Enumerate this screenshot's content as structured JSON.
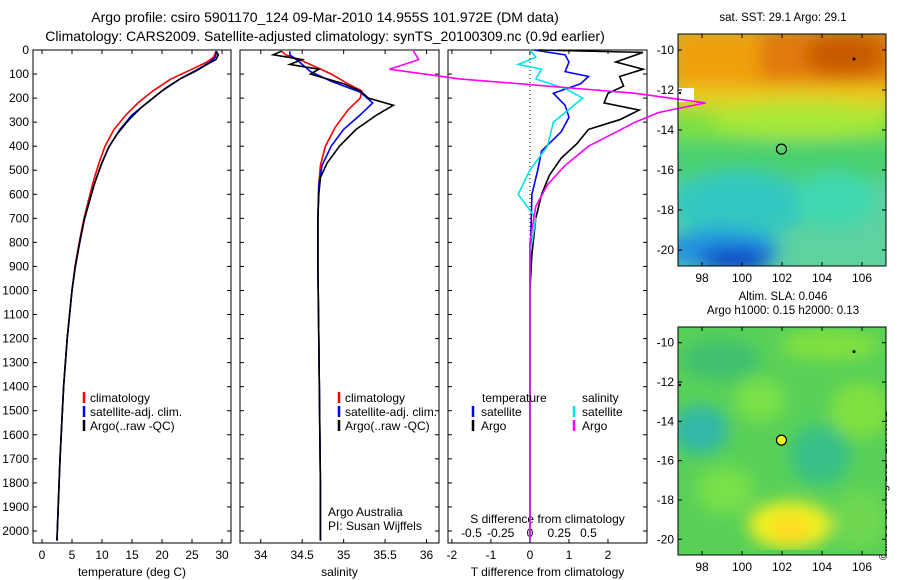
{
  "header": {
    "title_line1": "Argo profile: csiro 5901170_124 09-Mar-2010 14.955S 101.972E (DM data)",
    "title_line2": "Climatology: CARS2009. Satellite-adjusted climatology: synTS_20100309.nc (0.9d earlier)"
  },
  "stamp": "©IMOS 02-Aug-2017 18:45:51",
  "colors": {
    "climatology": "#ff0000",
    "satellite": "#0000ff",
    "argo": "#000000",
    "salinity_sat": "#00e5e5",
    "salinity_argo": "#ff00ff"
  },
  "chart_data": [
    {
      "type": "line",
      "id": "temperature",
      "xlabel": "temperature (deg C)",
      "ylabel": "",
      "xlim": [
        -1.5,
        31.5
      ],
      "ylim": [
        2050,
        0
      ],
      "xticks": [
        "0",
        "5",
        "10",
        "15",
        "20",
        "25",
        "30"
      ],
      "yticks": [
        "0",
        "100",
        "200",
        "300",
        "400",
        "500",
        "600",
        "700",
        "800",
        "900",
        "1000",
        "1100",
        "1200",
        "1300",
        "1400",
        "1500",
        "1600",
        "1700",
        "1800",
        "1900",
        "2000"
      ],
      "legend": {
        "placement": "lower-center",
        "entries": [
          "climatology",
          "satellite-adj. clim.",
          "Argo(..raw -QC)"
        ]
      },
      "series": [
        {
          "name": "climatology",
          "color": "#ff0000",
          "points": [
            [
              29.0,
              5
            ],
            [
              28.6,
              30
            ],
            [
              27.5,
              50
            ],
            [
              25.0,
              80
            ],
            [
              21.5,
              120
            ],
            [
              18.5,
              170
            ],
            [
              16.0,
              220
            ],
            [
              14.0,
              270
            ],
            [
              12.0,
              330
            ],
            [
              10.5,
              400
            ],
            [
              9.5,
              470
            ],
            [
              8.5,
              550
            ],
            [
              7.8,
              620
            ],
            [
              7.0,
              700
            ],
            [
              6.2,
              800
            ],
            [
              5.5,
              900
            ],
            [
              5.0,
              1000
            ],
            [
              4.6,
              1100
            ],
            [
              4.2,
              1200
            ],
            [
              3.9,
              1300
            ],
            [
              3.6,
              1400
            ],
            [
              3.4,
              1500
            ],
            [
              3.2,
              1600
            ],
            [
              3.0,
              1700
            ],
            [
              2.85,
              1800
            ],
            [
              2.7,
              1900
            ],
            [
              2.55,
              2000
            ],
            [
              2.5,
              2040
            ]
          ]
        },
        {
          "name": "satellite-adj. clim.",
          "color": "#0000ff",
          "points": [
            [
              29.1,
              5
            ],
            [
              28.9,
              30
            ],
            [
              28.0,
              50
            ],
            [
              26.0,
              80
            ],
            [
              23.0,
              120
            ],
            [
              20.0,
              170
            ],
            [
              17.5,
              220
            ],
            [
              15.0,
              270
            ],
            [
              13.0,
              330
            ],
            [
              11.2,
              400
            ],
            [
              10.0,
              470
            ],
            [
              8.8,
              550
            ],
            [
              8.0,
              620
            ],
            [
              7.1,
              700
            ],
            [
              6.3,
              800
            ],
            [
              5.55,
              900
            ],
            [
              5.0,
              1000
            ],
            [
              4.6,
              1100
            ],
            [
              4.2,
              1200
            ],
            [
              3.9,
              1300
            ],
            [
              3.6,
              1400
            ],
            [
              3.4,
              1500
            ],
            [
              3.2,
              1600
            ],
            [
              3.0,
              1700
            ],
            [
              2.85,
              1800
            ],
            [
              2.7,
              1900
            ],
            [
              2.55,
              2000
            ],
            [
              2.5,
              2040
            ]
          ]
        },
        {
          "name": "Argo(..raw -QC)",
          "color": "#000000",
          "points": [
            [
              29.0,
              5
            ],
            [
              29.4,
              20
            ],
            [
              29.0,
              40
            ],
            [
              27.5,
              60
            ],
            [
              25.5,
              90
            ],
            [
              23.0,
              120
            ],
            [
              20.5,
              160
            ],
            [
              18.5,
              200
            ],
            [
              16.5,
              240
            ],
            [
              14.5,
              290
            ],
            [
              12.5,
              350
            ],
            [
              11.0,
              410
            ],
            [
              9.8,
              480
            ],
            [
              8.7,
              560
            ],
            [
              7.9,
              630
            ],
            [
              7.0,
              710
            ],
            [
              6.2,
              810
            ],
            [
              5.5,
              910
            ],
            [
              5.0,
              1000
            ],
            [
              4.6,
              1100
            ],
            [
              4.2,
              1200
            ],
            [
              3.9,
              1300
            ],
            [
              3.6,
              1400
            ],
            [
              3.4,
              1500
            ],
            [
              3.2,
              1600
            ],
            [
              3.0,
              1700
            ],
            [
              2.85,
              1800
            ],
            [
              2.7,
              1900
            ],
            [
              2.55,
              2000
            ],
            [
              2.5,
              2040
            ]
          ]
        }
      ]
    },
    {
      "type": "line",
      "id": "salinity",
      "xlabel": "salinity",
      "xlim": [
        33.75,
        36.15
      ],
      "ylim": [
        2050,
        0
      ],
      "xticks": [
        "34",
        "34.5",
        "35",
        "35.5",
        "36"
      ],
      "legend": {
        "placement": "lower-center",
        "entries": [
          "climatology",
          "satellite-adj. clim.",
          "Argo(..raw -QC)"
        ]
      },
      "annotations": [
        "Argo Australia",
        "PI: Susan Wijffels"
      ],
      "series": [
        {
          "name": "climatology",
          "color": "#ff0000",
          "points": [
            [
              34.25,
              5
            ],
            [
              34.3,
              20
            ],
            [
              34.5,
              45
            ],
            [
              34.85,
              100
            ],
            [
              35.05,
              140
            ],
            [
              35.22,
              170
            ],
            [
              35.2,
              200
            ],
            [
              35.05,
              250
            ],
            [
              34.9,
              320
            ],
            [
              34.78,
              400
            ],
            [
              34.72,
              480
            ],
            [
              34.7,
              560
            ],
            [
              34.69,
              700
            ],
            [
              34.69,
              900
            ],
            [
              34.7,
              1200
            ],
            [
              34.71,
              1500
            ],
            [
              34.72,
              1800
            ],
            [
              34.72,
              2040
            ]
          ]
        },
        {
          "name": "satellite-adj. clim.",
          "color": "#0000ff",
          "points": [
            [
              34.35,
              5
            ],
            [
              34.35,
              20
            ],
            [
              34.45,
              45
            ],
            [
              34.6,
              90
            ],
            [
              34.85,
              130
            ],
            [
              35.2,
              175
            ],
            [
              35.35,
              220
            ],
            [
              35.2,
              270
            ],
            [
              35.0,
              330
            ],
            [
              34.85,
              400
            ],
            [
              34.74,
              480
            ],
            [
              34.7,
              560
            ],
            [
              34.69,
              700
            ],
            [
              34.69,
              900
            ],
            [
              34.7,
              1200
            ],
            [
              34.71,
              1500
            ],
            [
              34.72,
              1800
            ],
            [
              34.72,
              2040
            ]
          ]
        },
        {
          "name": "Argo(..raw -QC)",
          "color": "#000000",
          "points": [
            [
              34.25,
              5
            ],
            [
              34.15,
              20
            ],
            [
              34.5,
              40
            ],
            [
              34.35,
              60
            ],
            [
              34.7,
              80
            ],
            [
              34.6,
              100
            ],
            [
              35.0,
              140
            ],
            [
              35.2,
              170
            ],
            [
              35.3,
              200
            ],
            [
              35.6,
              230
            ],
            [
              35.4,
              270
            ],
            [
              35.15,
              330
            ],
            [
              34.95,
              400
            ],
            [
              34.8,
              470
            ],
            [
              34.72,
              530
            ],
            [
              34.7,
              600
            ],
            [
              34.69,
              700
            ],
            [
              34.69,
              900
            ],
            [
              34.7,
              1200
            ],
            [
              34.71,
              1500
            ],
            [
              34.72,
              1800
            ],
            [
              34.72,
              2040
            ]
          ]
        }
      ]
    },
    {
      "type": "line",
      "id": "difference",
      "xlabel": "T difference from climatology",
      "xlabel_top": "S difference from climatology",
      "xlim": [
        -2.1,
        3.0
      ],
      "ylim": [
        2050,
        0
      ],
      "xticks": [
        "-2",
        "-1",
        "0",
        "1",
        "2"
      ],
      "sticks": [
        "-0.5",
        "-0.25",
        "0",
        "0.25",
        "0.5"
      ],
      "legend": {
        "placement": "lower-center",
        "groups": [
          "temperature",
          "salinity"
        ],
        "entries": [
          "satellite",
          "Argo",
          "satellite",
          "Argo"
        ]
      },
      "series": [
        {
          "name": "satellite",
          "group": "temperature",
          "color": "#0000ff",
          "points": [
            [
              0.1,
              0
            ],
            [
              0.9,
              20
            ],
            [
              1.0,
              50
            ],
            [
              0.9,
              90
            ],
            [
              1.5,
              110
            ],
            [
              1.3,
              140
            ],
            [
              0.6,
              180
            ],
            [
              0.9,
              230
            ],
            [
              1.0,
              280
            ],
            [
              0.8,
              340
            ],
            [
              0.3,
              420
            ],
            [
              0.2,
              500
            ],
            [
              0.05,
              600
            ],
            [
              0.02,
              800
            ],
            [
              0.0,
              1000
            ],
            [
              0.0,
              1500
            ],
            [
              0.0,
              2040
            ]
          ]
        },
        {
          "name": "Argo",
          "group": "temperature",
          "color": "#000000",
          "points": [
            [
              0.2,
              0
            ],
            [
              2.9,
              10
            ],
            [
              2.2,
              50
            ],
            [
              2.9,
              80
            ],
            [
              2.3,
              110
            ],
            [
              2.4,
              150
            ],
            [
              2.0,
              180
            ],
            [
              1.9,
              220
            ],
            [
              2.8,
              250
            ],
            [
              2.3,
              290
            ],
            [
              1.5,
              330
            ],
            [
              1.2,
              390
            ],
            [
              0.8,
              450
            ],
            [
              0.5,
              520
            ],
            [
              0.3,
              600
            ],
            [
              0.15,
              700
            ],
            [
              0.05,
              850
            ],
            [
              0.0,
              1000
            ],
            [
              0.0,
              1500
            ],
            [
              0.0,
              2040
            ]
          ]
        },
        {
          "name": "satellite",
          "group": "salinity",
          "color": "#00e5e5",
          "points": [
            [
              0.0,
              0
            ],
            [
              0.05,
              30
            ],
            [
              -0.1,
              60
            ],
            [
              0.1,
              80
            ],
            [
              0.05,
              120
            ],
            [
              0.3,
              160
            ],
            [
              0.45,
              200
            ],
            [
              0.35,
              240
            ],
            [
              0.2,
              300
            ],
            [
              0.15,
              400
            ],
            [
              0.0,
              500
            ],
            [
              -0.1,
              600
            ],
            [
              0.05,
              700
            ],
            [
              0.0,
              850
            ],
            [
              0.0,
              1500
            ],
            [
              0.0,
              2040
            ]
          ]
        },
        {
          "name": "Argo",
          "group": "salinity",
          "color": "#ff00ff",
          "points": [
            [
              -1.0,
              0
            ],
            [
              -0.95,
              40
            ],
            [
              -1.2,
              80
            ],
            [
              -0.6,
              120
            ],
            [
              0.4,
              160
            ],
            [
              0.9,
              180
            ],
            [
              1.5,
              220
            ],
            [
              1.1,
              260
            ],
            [
              0.9,
              300
            ],
            [
              0.7,
              350
            ],
            [
              0.5,
              400
            ],
            [
              0.3,
              480
            ],
            [
              0.15,
              560
            ],
            [
              0.05,
              650
            ],
            [
              0.0,
              800
            ],
            [
              0.0,
              1500
            ],
            [
              0.0,
              2040
            ]
          ]
        }
      ]
    },
    {
      "type": "heatmap",
      "id": "sst-map",
      "title": "sat. SST: 29.1  Argo: 29.1",
      "xlim": [
        96.8,
        107.2
      ],
      "ylim": [
        -20.8,
        -9.2
      ],
      "xticks": [
        "98",
        "100",
        "102",
        "104",
        "106"
      ],
      "yticks": [
        "-10",
        "-12",
        "-14",
        "-16",
        "-18",
        "-20"
      ],
      "marker": {
        "lon": 101.972,
        "lat": -14.955
      }
    },
    {
      "type": "heatmap",
      "id": "sla-map",
      "title": "Altim. SLA: 0.046",
      "subtitle": "Argo h1000: 0.15 h2000: 0.13",
      "xlim": [
        96.8,
        107.2
      ],
      "ylim": [
        -20.8,
        -9.2
      ],
      "xticks": [
        "98",
        "100",
        "102",
        "104",
        "106"
      ],
      "yticks": [
        "-10",
        "-12",
        "-14",
        "-16",
        "-18",
        "-20"
      ],
      "marker": {
        "lon": 101.972,
        "lat": -14.955
      }
    }
  ]
}
